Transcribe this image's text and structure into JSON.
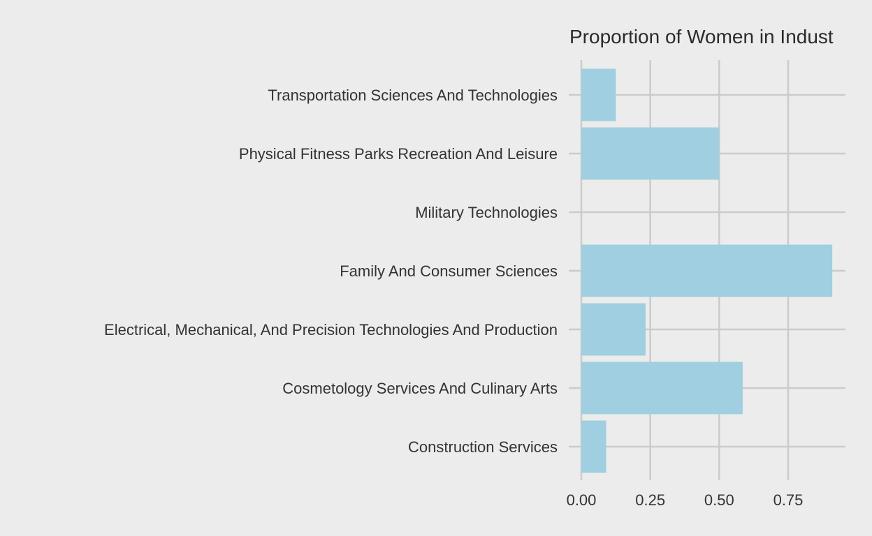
{
  "chart_data": {
    "type": "bar",
    "orientation": "horizontal",
    "title": "Proportion of Women in Indust",
    "xlabel": "",
    "ylabel": "",
    "categories": [
      "Construction Services",
      "Cosmetology Services And Culinary Arts",
      "Electrical, Mechanical, And Precision Technologies And Production",
      "Family And Consumer Sciences",
      "Military Technologies",
      "Physical Fitness Parks Recreation And Leisure",
      "Transportation Sciences And Technologies"
    ],
    "values": [
      0.09,
      0.585,
      0.233,
      0.91,
      0.0,
      0.5,
      0.125
    ],
    "xlim": [
      0,
      0.955
    ],
    "xticks": [
      0.0,
      0.25,
      0.5,
      0.75
    ],
    "xtick_labels": [
      "0.00",
      "0.25",
      "0.50",
      "0.75"
    ],
    "grid": true,
    "legend": "none",
    "colors": {
      "background": "#ECECEC",
      "bar": "#9FCFE0",
      "grid": "#CBCBCB",
      "text": "#333333"
    }
  }
}
